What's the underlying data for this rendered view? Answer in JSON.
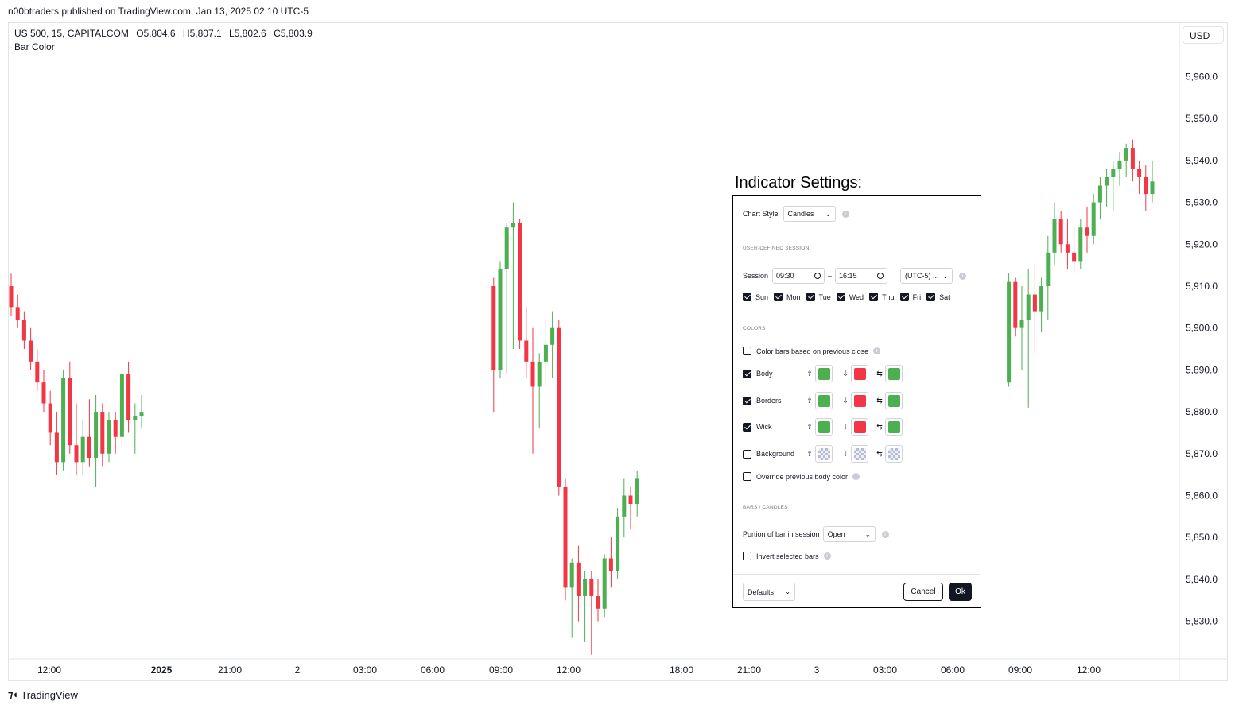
{
  "publisher_line": "n00btraders published on TradingView.com, Jan 13, 2025 02:10 UTC-5",
  "legend": {
    "symbol": "US 500, 15, CAPITALCOM",
    "open_label": "O",
    "open": "5,804.6",
    "high_label": "H",
    "high": "5,807.1",
    "low_label": "L",
    "low": "5,802.6",
    "close_label": "C",
    "close": "5,803.9",
    "indicator": "Bar Color"
  },
  "currency": "USD",
  "brand": "TradingView",
  "colors": {
    "up": "#4caf50",
    "down": "#f23645",
    "grid": "#e0e3eb"
  },
  "chart_data": {
    "type": "candlestick",
    "y_ticks": [
      "5,960.0",
      "5,950.0",
      "5,940.0",
      "5,930.0",
      "5,920.0",
      "5,910.0",
      "5,900.0",
      "5,890.0",
      "5,880.0",
      "5,870.0",
      "5,860.0",
      "5,850.0",
      "5,840.0",
      "5,830.0"
    ],
    "y_tick_values": [
      5960,
      5950,
      5940,
      5930,
      5920,
      5910,
      5900,
      5890,
      5880,
      5870,
      5860,
      5850,
      5840,
      5830
    ],
    "ylim": [
      5821,
      5973
    ],
    "x_ticks": [
      "12:00",
      "2025",
      "21:00",
      "2",
      "03:00",
      "06:00",
      "09:00",
      "12:00",
      "18:00",
      "21:00",
      "3",
      "03:00",
      "06:00",
      "09:00",
      "12:00"
    ],
    "segments": [
      {
        "start_slot": 0,
        "candles": [
          [
            5910,
            5913,
            5903,
            5905
          ],
          [
            5905,
            5908,
            5900,
            5902
          ],
          [
            5902,
            5904,
            5895,
            5897
          ],
          [
            5897,
            5900,
            5890,
            5892
          ],
          [
            5892,
            5895,
            5885,
            5887
          ],
          [
            5887,
            5890,
            5880,
            5882
          ],
          [
            5882,
            5885,
            5872,
            5875
          ],
          [
            5875,
            5880,
            5865,
            5868
          ],
          [
            5868,
            5890,
            5866,
            5888
          ],
          [
            5888,
            5892,
            5870,
            5872
          ],
          [
            5872,
            5882,
            5865,
            5868
          ],
          [
            5868,
            5878,
            5865,
            5874
          ],
          [
            5874,
            5883,
            5867,
            5869
          ],
          [
            5869,
            5884,
            5862,
            5880
          ],
          [
            5880,
            5882,
            5867,
            5870
          ],
          [
            5870,
            5880,
            5868,
            5878
          ],
          [
            5878,
            5880,
            5870,
            5874
          ],
          [
            5874,
            5890,
            5872,
            5889
          ],
          [
            5889,
            5892,
            5875,
            5878
          ],
          [
            5878,
            5882,
            5870,
            5879
          ],
          [
            5879,
            5884,
            5876,
            5880
          ]
        ]
      },
      {
        "start_slot": 74,
        "candles": [
          [
            5910,
            5912,
            5880,
            5890
          ],
          [
            5890,
            5916,
            5888,
            5914
          ],
          [
            5914,
            5925,
            5889,
            5924
          ],
          [
            5924,
            5930,
            5895,
            5925
          ],
          [
            5925,
            5926,
            5895,
            5897
          ],
          [
            5897,
            5905,
            5888,
            5892
          ],
          [
            5892,
            5900,
            5870,
            5886
          ],
          [
            5886,
            5894,
            5876,
            5892
          ],
          [
            5892,
            5902,
            5886,
            5896
          ],
          [
            5896,
            5904,
            5888,
            5900
          ],
          [
            5900,
            5902,
            5860,
            5862
          ],
          [
            5862,
            5864,
            5835,
            5838
          ],
          [
            5838,
            5845,
            5826,
            5844
          ],
          [
            5844,
            5848,
            5830,
            5836
          ],
          [
            5836,
            5842,
            5825,
            5840
          ],
          [
            5840,
            5842,
            5822,
            5836
          ],
          [
            5836,
            5840,
            5830,
            5833
          ],
          [
            5833,
            5846,
            5831,
            5845
          ],
          [
            5845,
            5850,
            5838,
            5842
          ],
          [
            5842,
            5857,
            5840,
            5855
          ],
          [
            5855,
            5864,
            5850,
            5860
          ],
          [
            5860,
            5862,
            5852,
            5858
          ],
          [
            5858,
            5866,
            5855,
            5864
          ]
        ]
      },
      {
        "start_slot": 153,
        "candles": [
          [
            5887,
            5913,
            5886,
            5911
          ],
          [
            5911,
            5912,
            5898,
            5900
          ],
          [
            5900,
            5910,
            5890,
            5902
          ],
          [
            5902,
            5914,
            5881,
            5908
          ],
          [
            5908,
            5915,
            5894,
            5904
          ],
          [
            5904,
            5912,
            5899,
            5910
          ],
          [
            5910,
            5922,
            5902,
            5918
          ],
          [
            5918,
            5930,
            5915,
            5926
          ],
          [
            5926,
            5928,
            5918,
            5920
          ],
          [
            5920,
            5926,
            5914,
            5918
          ],
          [
            5918,
            5924,
            5913,
            5916
          ],
          [
            5916,
            5926,
            5914,
            5924
          ],
          [
            5924,
            5929,
            5918,
            5922
          ],
          [
            5922,
            5932,
            5920,
            5930
          ],
          [
            5930,
            5936,
            5926,
            5934
          ],
          [
            5934,
            5938,
            5929,
            5936
          ],
          [
            5936,
            5940,
            5928,
            5938
          ],
          [
            5938,
            5942,
            5934,
            5940
          ],
          [
            5940,
            5944,
            5936,
            5943
          ],
          [
            5943,
            5945,
            5935,
            5938
          ],
          [
            5938,
            5940,
            5932,
            5936
          ],
          [
            5936,
            5939,
            5928,
            5932
          ],
          [
            5932,
            5940,
            5930,
            5935
          ]
        ]
      }
    ]
  },
  "settings": {
    "title": "Indicator Settings:",
    "chart_style_label": "Chart Style",
    "chart_style_value": "Candles",
    "section_session": "USER-DEFINED SESSION",
    "session_label": "Session",
    "session_start": "09:30",
    "session_dash": "–",
    "session_end": "16:15",
    "timezone": "(UTC-5) ...",
    "days": [
      "Sun",
      "Mon",
      "Tue",
      "Wed",
      "Thu",
      "Fri",
      "Sat"
    ],
    "section_colors": "COLORS",
    "color_prev_close": "Color bars based on previous close",
    "body_label": "Body",
    "borders_label": "Borders",
    "wick_label": "Wick",
    "background_label": "Background",
    "override_label": "Override previous body color",
    "arrow_up": "⇧",
    "arrow_down": "⇩",
    "arrow_lr": "⇆",
    "section_bars": "BARS / CANDLES",
    "portion_label": "Portion of bar in session",
    "portion_value": "Open",
    "invert_label": "Invert selected bars",
    "defaults_label": "Defaults",
    "cancel_label": "Cancel",
    "ok_label": "Ok",
    "info_glyph": "i",
    "chevron": "⌄"
  }
}
